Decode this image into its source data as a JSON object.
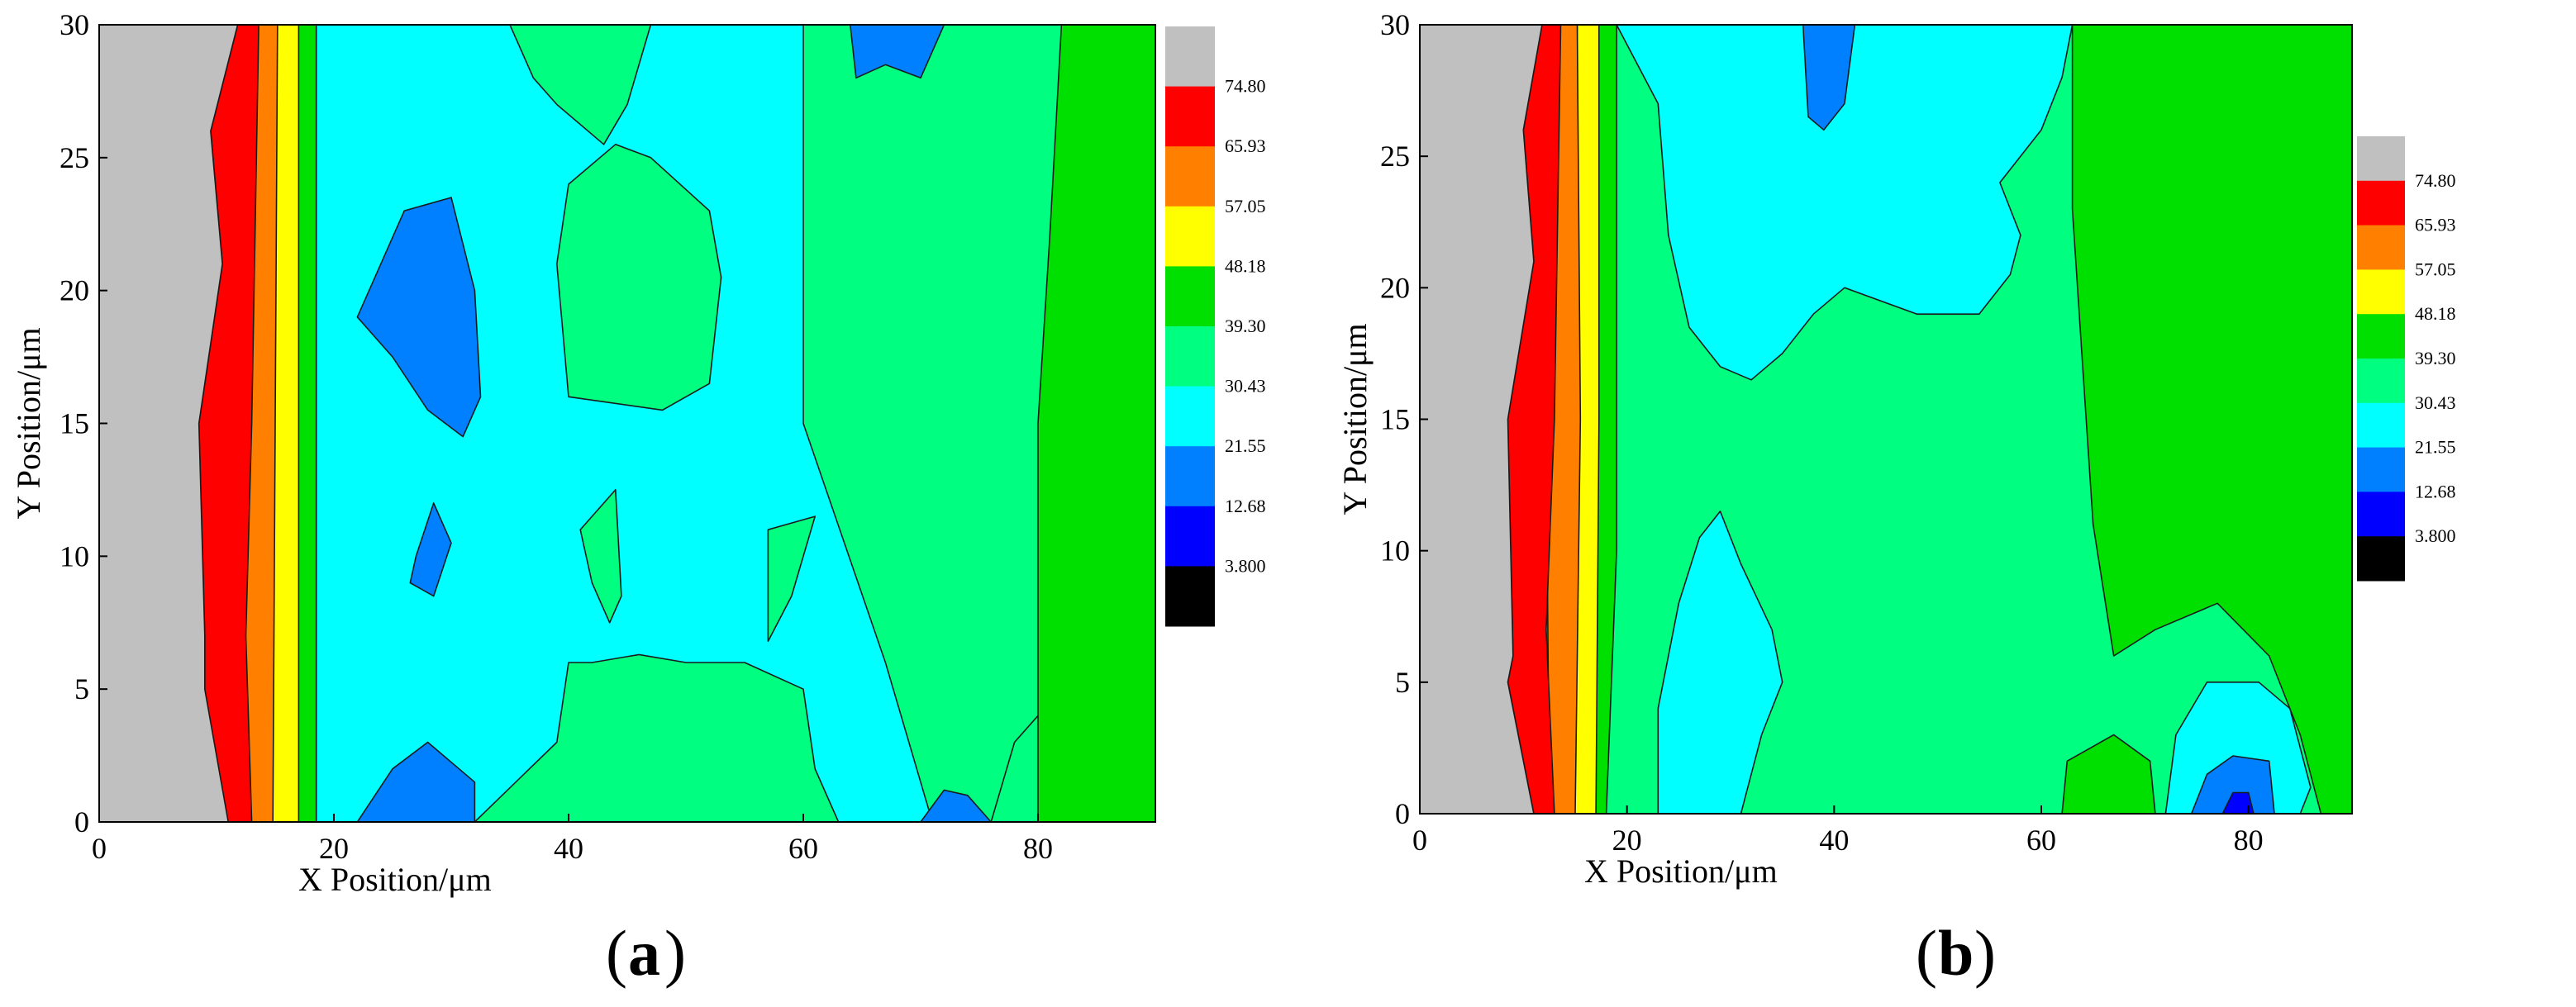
{
  "chart_data": [
    {
      "type": "heatmap",
      "panel_label": "(a)",
      "panel_letter": "a",
      "xlabel": "X Position/μm",
      "ylabel": "Y Position/μm",
      "xlim": [
        0,
        90
      ],
      "ylim": [
        0,
        30
      ],
      "x_ticks": [
        "0",
        "20",
        "40",
        "60",
        "80"
      ],
      "y_ticks": [
        "0",
        "5",
        "10",
        "15",
        "20",
        "25",
        "30"
      ],
      "x_tick_values": [
        0,
        20,
        40,
        60,
        80
      ],
      "y_tick_values": [
        0,
        5,
        10,
        15,
        20,
        25,
        30
      ],
      "colorbar": {
        "levels": [
          "74.80",
          "65.93",
          "57.05",
          "48.18",
          "39.30",
          "30.43",
          "21.55",
          "12.68",
          "3.800"
        ],
        "colors": [
          "#c0c0c0",
          "#ff0000",
          "#ff8000",
          "#ffff00",
          "#00e000",
          "#00ff80",
          "#00ffff",
          "#0080ff",
          "#0000ff",
          "#000000"
        ]
      },
      "regions": [
        {
          "level": "30.43-39.30",
          "points": [
            [
              11,
              0
            ],
            [
              76,
              0
            ],
            [
              78,
              3
            ],
            [
              88,
              8
            ],
            [
              89,
              30
            ],
            [
              15,
              30
            ]
          ]
        },
        {
          "level": "21.55-30.43",
          "points": [
            [
              18.5,
              0
            ],
            [
              71,
              0
            ],
            [
              69,
              3
            ],
            [
              67,
              6
            ],
            [
              60,
              15
            ],
            [
              60,
              30
            ],
            [
              17,
              30
            ],
            [
              17,
              20
            ],
            [
              18,
              6
            ]
          ]
        },
        {
          "level": "30.43-39.30",
          "points": [
            [
              32,
              0
            ],
            [
              63,
              0
            ],
            [
              61,
              2
            ],
            [
              60,
              5
            ],
            [
              55,
              6
            ],
            [
              50,
              6
            ],
            [
              46,
              6.3
            ],
            [
              42,
              6
            ],
            [
              40,
              6
            ],
            [
              39,
              3
            ]
          ]
        },
        {
          "level": "30.43-39.30",
          "points": [
            [
              40,
              16
            ],
            [
              48,
              15.5
            ],
            [
              52,
              16.5
            ],
            [
              53,
              20.5
            ],
            [
              52,
              23
            ],
            [
              47,
              25
            ],
            [
              44,
              25.5
            ],
            [
              40,
              24
            ],
            [
              39,
              21
            ]
          ]
        },
        {
          "level": "30.43-39.30",
          "points": [
            [
              35,
              30
            ],
            [
              47,
              30
            ],
            [
              45,
              27
            ],
            [
              43,
              25.5
            ],
            [
              39,
              27
            ],
            [
              37,
              28
            ]
          ]
        },
        {
          "level": "30.43-39.30",
          "points": [
            [
              41,
              11
            ],
            [
              44,
              12.5
            ],
            [
              44.5,
              8.5
            ],
            [
              43.5,
              7.5
            ],
            [
              42,
              9
            ]
          ]
        },
        {
          "level": "30.43-39.30",
          "points": [
            [
              57,
              11
            ],
            [
              61,
              11.5
            ],
            [
              59,
              8.5
            ],
            [
              57,
              6.8
            ]
          ]
        },
        {
          "level": "12.68-21.55",
          "points": [
            [
              23,
              20
            ],
            [
              26,
              23
            ],
            [
              30,
              23.5
            ],
            [
              32,
              20
            ],
            [
              32.5,
              16
            ],
            [
              31,
              14.5
            ],
            [
              28,
              15.5
            ],
            [
              25,
              17.5
            ],
            [
              22,
              19
            ]
          ]
        },
        {
          "level": "12.68-21.55",
          "points": [
            [
              27,
              10
            ],
            [
              28.5,
              12
            ],
            [
              30,
              10.5
            ],
            [
              28.5,
              8.5
            ],
            [
              26.5,
              9
            ]
          ]
        },
        {
          "level": "12.68-21.55",
          "points": [
            [
              22,
              0
            ],
            [
              32,
              0
            ],
            [
              32,
              1.5
            ],
            [
              28,
              3
            ],
            [
              25,
              2
            ]
          ]
        },
        {
          "level": "12.68-21.55",
          "points": [
            [
              70,
              0
            ],
            [
              76,
              0
            ],
            [
              74,
              1
            ],
            [
              72,
              1.2
            ]
          ]
        },
        {
          "level": "12.68-21.55",
          "points": [
            [
              64,
              30
            ],
            [
              72,
              30
            ],
            [
              70,
              28
            ],
            [
              67,
              28.5
            ],
            [
              64.5,
              28
            ]
          ]
        },
        {
          "level": "39.30-48.18",
          "points": [
            [
              80,
              0
            ],
            [
              90,
              0
            ],
            [
              90,
              30
            ],
            [
              82,
              30
            ],
            [
              81,
              22
            ],
            [
              80,
              15
            ],
            [
              80,
              5
            ]
          ]
        },
        {
          "level": "39.30-48.18",
          "points": [
            [
              15.5,
              0
            ],
            [
              18.5,
              0
            ],
            [
              18.5,
              30
            ],
            [
              16,
              30
            ]
          ]
        },
        {
          "level": "48.18-57.05",
          "points": [
            [
              14.5,
              0
            ],
            [
              17,
              0
            ],
            [
              17,
              15
            ],
            [
              17,
              30
            ],
            [
              15,
              30
            ]
          ]
        },
        {
          "level": "57.05-65.93",
          "points": [
            [
              12.5,
              0
            ],
            [
              14.8,
              0
            ],
            [
              15,
              15
            ],
            [
              15.2,
              30
            ],
            [
              13.3,
              30
            ],
            [
              12.2,
              15
            ]
          ]
        },
        {
          "level": "65.93-74.80",
          "points": [
            [
              10.5,
              0
            ],
            [
              13,
              0
            ],
            [
              12.5,
              7
            ],
            [
              13,
              15
            ],
            [
              13.6,
              30
            ],
            [
              11.8,
              30
            ],
            [
              9.5,
              26
            ],
            [
              10.5,
              21
            ],
            [
              8.5,
              15
            ],
            [
              9,
              7
            ],
            [
              9,
              5
            ]
          ]
        },
        {
          "level": "74.80+",
          "points": [
            [
              0,
              0
            ],
            [
              11,
              0
            ],
            [
              9,
              5
            ],
            [
              9,
              7
            ],
            [
              8.5,
              15
            ],
            [
              10.5,
              21
            ],
            [
              9.5,
              26
            ],
            [
              11.8,
              30
            ],
            [
              0,
              30
            ]
          ]
        }
      ]
    },
    {
      "type": "heatmap",
      "panel_label": "(b)",
      "panel_letter": "b",
      "xlabel": "X Position/μm",
      "ylabel": "Y Position/μm",
      "xlim": [
        0,
        90
      ],
      "ylim": [
        0,
        30
      ],
      "x_ticks": [
        "0",
        "20",
        "40",
        "60",
        "80"
      ],
      "y_ticks": [
        "0",
        "5",
        "10",
        "15",
        "20",
        "25",
        "30"
      ],
      "x_tick_values": [
        0,
        20,
        40,
        60,
        80
      ],
      "y_tick_values": [
        0,
        5,
        10,
        15,
        20,
        25,
        30
      ],
      "colorbar": {
        "levels": [
          "74.80",
          "65.93",
          "57.05",
          "48.18",
          "39.30",
          "30.43",
          "21.55",
          "12.68",
          "3.800"
        ],
        "colors": [
          "#c0c0c0",
          "#ff0000",
          "#ff8000",
          "#ffff00",
          "#00e000",
          "#00ff80",
          "#00ffff",
          "#0080ff",
          "#0000ff",
          "#000000"
        ]
      },
      "regions": [
        {
          "level": "30.43-39.30",
          "points": [
            [
              18,
              0
            ],
            [
              90,
              0
            ],
            [
              90,
              30
            ],
            [
              19,
              30
            ]
          ]
        },
        {
          "level": "21.55-30.43",
          "points": [
            [
              19,
              30
            ],
            [
              63,
              30
            ],
            [
              62,
              28
            ],
            [
              60,
              26
            ],
            [
              56,
              24
            ],
            [
              58,
              22
            ],
            [
              57,
              20.5
            ],
            [
              54,
              19
            ],
            [
              48,
              19
            ],
            [
              41,
              20
            ],
            [
              38,
              19
            ],
            [
              35,
              17.5
            ],
            [
              32,
              16.5
            ],
            [
              29,
              17
            ],
            [
              26,
              18.5
            ],
            [
              24,
              22
            ],
            [
              23,
              27
            ]
          ]
        },
        {
          "level": "21.55-30.43",
          "points": [
            [
              23,
              0
            ],
            [
              31,
              0
            ],
            [
              33,
              3
            ],
            [
              35,
              5
            ],
            [
              34,
              7
            ],
            [
              31,
              9.5
            ],
            [
              29,
              11.5
            ],
            [
              27,
              10.5
            ],
            [
              25,
              8
            ],
            [
              23,
              4
            ]
          ]
        },
        {
          "level": "12.68-21.55",
          "points": [
            [
              37,
              30
            ],
            [
              42,
              30
            ],
            [
              41,
              27
            ],
            [
              39,
              26
            ],
            [
              37.5,
              26.5
            ]
          ]
        },
        {
          "level": "39.30-48.18",
          "points": [
            [
              63,
              30
            ],
            [
              90,
              30
            ],
            [
              90,
              0
            ],
            [
              87,
              0
            ],
            [
              85,
              3
            ],
            [
              82,
              6
            ],
            [
              77,
              8
            ],
            [
              71,
              7
            ],
            [
              67,
              6
            ],
            [
              65,
              11
            ],
            [
              64,
              17
            ],
            [
              63,
              23
            ]
          ]
        },
        {
          "level": "39.30-48.18",
          "points": [
            [
              62,
              0
            ],
            [
              71,
              0
            ],
            [
              70.5,
              2
            ],
            [
              67,
              3
            ],
            [
              62.5,
              2
            ]
          ]
        },
        {
          "level": "21.55-30.43",
          "points": [
            [
              72,
              0
            ],
            [
              85,
              0
            ],
            [
              86,
              1
            ],
            [
              84,
              4
            ],
            [
              81,
              5
            ],
            [
              76,
              5
            ],
            [
              73,
              3
            ]
          ]
        },
        {
          "level": "12.68-21.55",
          "points": [
            [
              74.5,
              0
            ],
            [
              82.5,
              0
            ],
            [
              82,
              2
            ],
            [
              78.5,
              2.2
            ],
            [
              76,
              1.5
            ]
          ]
        },
        {
          "level": "3.800-12.68",
          "points": [
            [
              77.5,
              0
            ],
            [
              80.5,
              0
            ],
            [
              80,
              0.8
            ],
            [
              78.5,
              0.8
            ]
          ]
        },
        {
          "level": "39.30-48.18",
          "points": [
            [
              15.5,
              0
            ],
            [
              18,
              0
            ],
            [
              19,
              10
            ],
            [
              19,
              20
            ],
            [
              19,
              30
            ],
            [
              16.5,
              30
            ]
          ]
        },
        {
          "level": "48.18-57.05",
          "points": [
            [
              14.5,
              0
            ],
            [
              17,
              0
            ],
            [
              17.3,
              15
            ],
            [
              17.3,
              30
            ],
            [
              15.2,
              30
            ]
          ]
        },
        {
          "level": "57.05-65.93",
          "points": [
            [
              12.5,
              0
            ],
            [
              15,
              0
            ],
            [
              15.5,
              15
            ],
            [
              15.2,
              30
            ],
            [
              13.3,
              30
            ],
            [
              12.2,
              15
            ]
          ]
        },
        {
          "level": "65.93-74.80",
          "points": [
            [
              11,
              0
            ],
            [
              13,
              0
            ],
            [
              12.2,
              7
            ],
            [
              13,
              15
            ],
            [
              13.6,
              30
            ],
            [
              11.8,
              30
            ],
            [
              10,
              26
            ],
            [
              11,
              21
            ],
            [
              8.5,
              15
            ],
            [
              9,
              6
            ],
            [
              8.5,
              5
            ]
          ]
        },
        {
          "level": "74.80+",
          "points": [
            [
              0,
              0
            ],
            [
              11,
              0
            ],
            [
              8.5,
              5
            ],
            [
              9,
              6
            ],
            [
              8.5,
              15
            ],
            [
              11,
              21
            ],
            [
              10,
              26
            ],
            [
              11.8,
              30
            ],
            [
              0,
              30
            ]
          ]
        }
      ]
    }
  ]
}
